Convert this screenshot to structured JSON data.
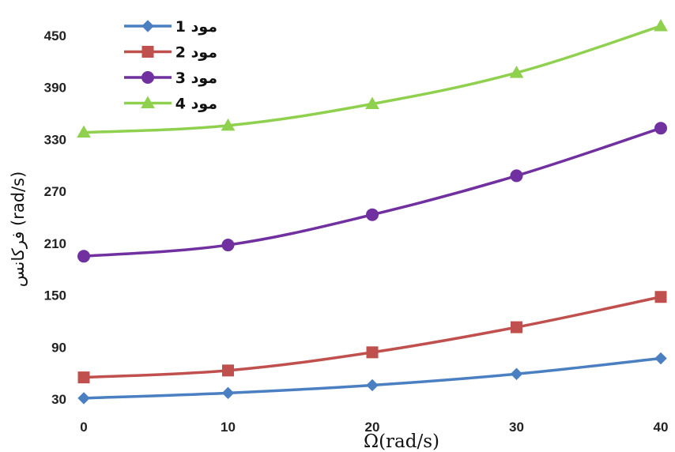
{
  "chart_data": {
    "type": "line",
    "title": "",
    "xlabel": "Ω(rad/s)",
    "ylabel": "فرکانس (rad/s)",
    "x": [
      0,
      10,
      20,
      30,
      40
    ],
    "xlim": [
      0,
      40
    ],
    "ylim": [
      30,
      470
    ],
    "xticks": [
      "0",
      "10",
      "20",
      "30",
      "40"
    ],
    "yticks": [
      "30",
      "90",
      "150",
      "210",
      "270",
      "330",
      "390",
      "450"
    ],
    "ytick_values": [
      30,
      90,
      150,
      210,
      270,
      330,
      390,
      450
    ],
    "grid": false,
    "legend_position": "top-left",
    "series": [
      {
        "name": "مود 1",
        "values": [
          31,
          37,
          46,
          59,
          77
        ],
        "color": "#4a7fc1",
        "marker": "diamond"
      },
      {
        "name": "مود 2",
        "values": [
          55,
          63,
          84,
          113,
          148
        ],
        "color": "#c0504d",
        "marker": "square"
      },
      {
        "name": "مود 3",
        "values": [
          195,
          208,
          243,
          288,
          343
        ],
        "color": "#7030a0",
        "marker": "circle"
      },
      {
        "name": "مود 4",
        "values": [
          338,
          346,
          371,
          407,
          461
        ],
        "color": "#8fd14f",
        "marker": "triangle"
      }
    ]
  }
}
